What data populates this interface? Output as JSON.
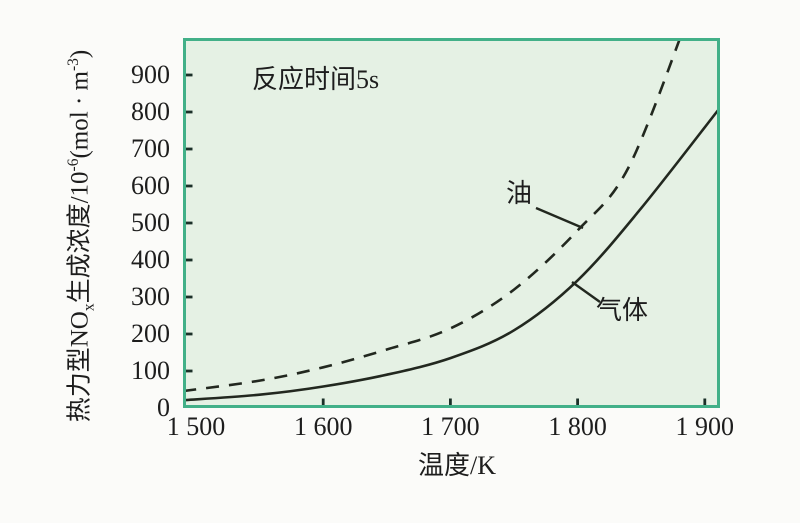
{
  "colors": {
    "outer_bg": "#fbfbf9",
    "plot_bg": "#e5f1e4",
    "frame": "#42b088",
    "curve": "#22281f",
    "tick": "#1b3028",
    "text": "#1d1d1d"
  },
  "chart_data": {
    "type": "line",
    "annotation": "反应时间5s",
    "x_axis": {
      "label": "温度/K",
      "range_k": [
        1489,
        1912
      ],
      "ticks": [
        {
          "value": 1500,
          "label": "1 500",
          "mark": false
        },
        {
          "value": 1600,
          "label": "1 600",
          "mark": true
        },
        {
          "value": 1700,
          "label": "1 700",
          "mark": true
        },
        {
          "value": 1800,
          "label": "1 800",
          "mark": true
        },
        {
          "value": 1900,
          "label": "1 900",
          "mark": true
        }
      ]
    },
    "y_axis": {
      "label_plain": "热力型NOx生成浓度/10⁻⁶(mol·m⁻³)",
      "label_parts": {
        "pre": "热力型NO",
        "sub": "x",
        "mid": "生成浓度/10",
        "sup": "-6",
        "unit_pre": "(mol · m",
        "unit_sup": "-3",
        "unit_post": ")"
      },
      "range": [
        0,
        1000
      ],
      "ticks": [
        {
          "value": 0,
          "label": "0",
          "mark": false
        },
        {
          "value": 100,
          "label": "100",
          "mark": true
        },
        {
          "value": 200,
          "label": "200",
          "mark": true
        },
        {
          "value": 300,
          "label": "300",
          "mark": true
        },
        {
          "value": 400,
          "label": "400",
          "mark": true
        },
        {
          "value": 500,
          "label": "500",
          "mark": true
        },
        {
          "value": 600,
          "label": "600",
          "mark": true
        },
        {
          "value": 700,
          "label": "700",
          "mark": true
        },
        {
          "value": 800,
          "label": "800",
          "mark": true
        },
        {
          "value": 900,
          "label": "900",
          "mark": true
        }
      ]
    },
    "series": [
      {
        "name": "油",
        "line_style": "dashed",
        "points": [
          [
            1490,
            46
          ],
          [
            1550,
            74
          ],
          [
            1600,
            110
          ],
          [
            1650,
            158
          ],
          [
            1700,
            215
          ],
          [
            1750,
            320
          ],
          [
            1800,
            480
          ],
          [
            1840,
            650
          ],
          [
            1885,
            1040
          ]
        ]
      },
      {
        "name": "气体",
        "line_style": "solid",
        "points": [
          [
            1490,
            21
          ],
          [
            1550,
            36
          ],
          [
            1600,
            58
          ],
          [
            1650,
            90
          ],
          [
            1700,
            135
          ],
          [
            1750,
            210
          ],
          [
            1800,
            345
          ],
          [
            1850,
            540
          ],
          [
            1912,
            812
          ]
        ]
      }
    ]
  }
}
